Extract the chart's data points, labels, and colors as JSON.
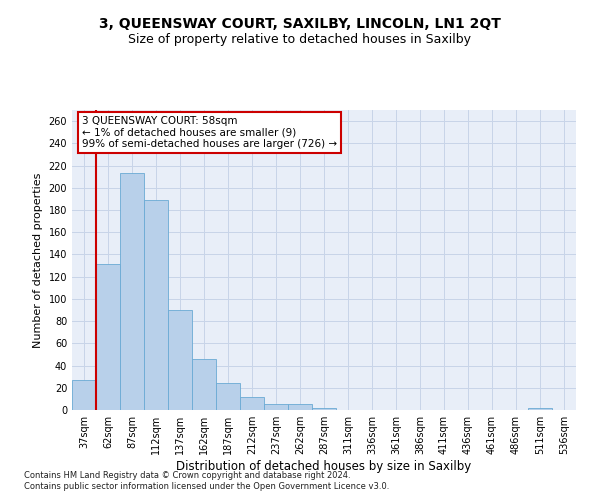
{
  "title": "3, QUEENSWAY COURT, SAXILBY, LINCOLN, LN1 2QT",
  "subtitle": "Size of property relative to detached houses in Saxilby",
  "xlabel": "Distribution of detached houses by size in Saxilby",
  "ylabel": "Number of detached properties",
  "categories": [
    "37sqm",
    "62sqm",
    "87sqm",
    "112sqm",
    "137sqm",
    "162sqm",
    "187sqm",
    "212sqm",
    "237sqm",
    "262sqm",
    "287sqm",
    "311sqm",
    "336sqm",
    "361sqm",
    "386sqm",
    "411sqm",
    "436sqm",
    "461sqm",
    "486sqm",
    "511sqm",
    "536sqm"
  ],
  "values": [
    27,
    131,
    213,
    189,
    90,
    46,
    24,
    12,
    5,
    5,
    2,
    0,
    0,
    0,
    0,
    0,
    0,
    0,
    0,
    2,
    0
  ],
  "bar_color": "#b8d0ea",
  "bar_edge_color": "#6aaad4",
  "vline_color": "#cc0000",
  "annotation_text": "3 QUEENSWAY COURT: 58sqm\n← 1% of detached houses are smaller (9)\n99% of semi-detached houses are larger (726) →",
  "annotation_box_color": "#ffffff",
  "annotation_box_edge": "#cc0000",
  "ylim": [
    0,
    270
  ],
  "yticks": [
    0,
    20,
    40,
    60,
    80,
    100,
    120,
    140,
    160,
    180,
    200,
    220,
    240,
    260
  ],
  "grid_color": "#c8d4e8",
  "bg_color": "#e8eef8",
  "footer1": "Contains HM Land Registry data © Crown copyright and database right 2024.",
  "footer2": "Contains public sector information licensed under the Open Government Licence v3.0.",
  "title_fontsize": 10,
  "subtitle_fontsize": 9,
  "tick_fontsize": 7,
  "ylabel_fontsize": 8,
  "xlabel_fontsize": 8.5
}
